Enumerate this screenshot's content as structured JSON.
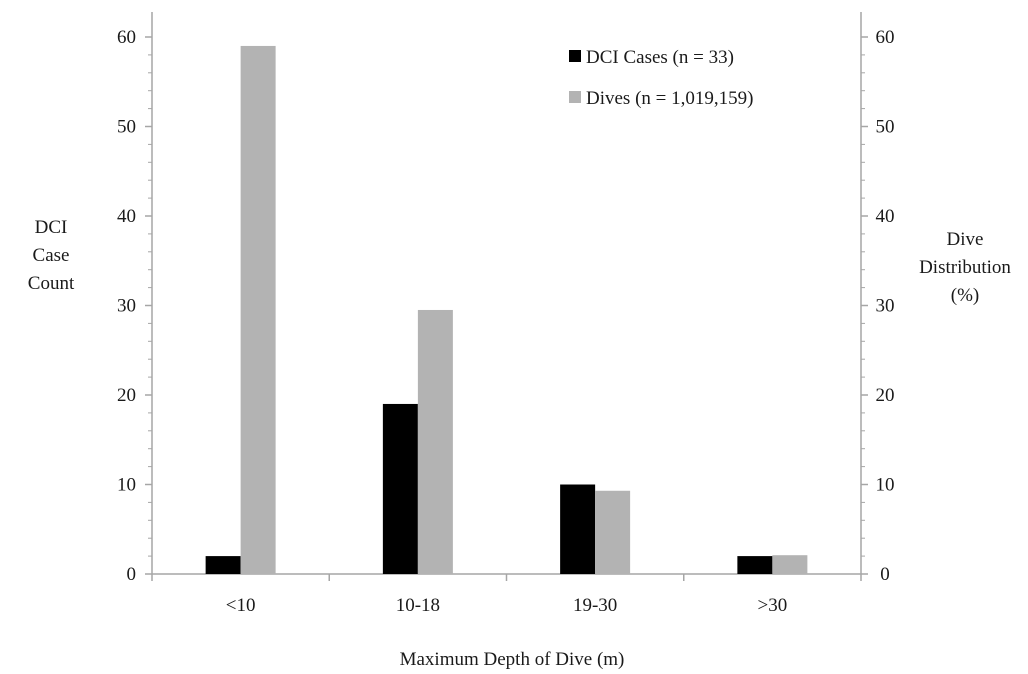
{
  "chart_data": {
    "type": "bar",
    "categories": [
      "<10",
      "10-18",
      "19-30",
      ">30"
    ],
    "series": [
      {
        "name": "DCI Cases (n = 33)",
        "axis": "left",
        "values": [
          2,
          19,
          10,
          2
        ]
      },
      {
        "name": "Dives (n = 1,019,159)",
        "axis": "right",
        "values": [
          59,
          29.5,
          9.3,
          2.1
        ]
      }
    ],
    "xlabel": "Maximum Depth of Dive (m)",
    "ylabel_left": [
      "DCI",
      "Case",
      "Count"
    ],
    "ylabel_right": [
      "Dive",
      "Distribution",
      "(%)"
    ],
    "ylim_left": [
      0,
      60
    ],
    "ylim_right": [
      0,
      60
    ],
    "yticks_left": [
      "0",
      "10",
      "20",
      "30",
      "40",
      "50",
      "60"
    ],
    "yticks_right": [
      "0",
      "10",
      "20",
      "30",
      "40",
      "50",
      "60"
    ],
    "grid": false,
    "legend_position": "top-right",
    "colors": {
      "DCI Cases": "#000000",
      "Dives": "#b3b3b3",
      "axis": "#a6a6a6"
    }
  }
}
